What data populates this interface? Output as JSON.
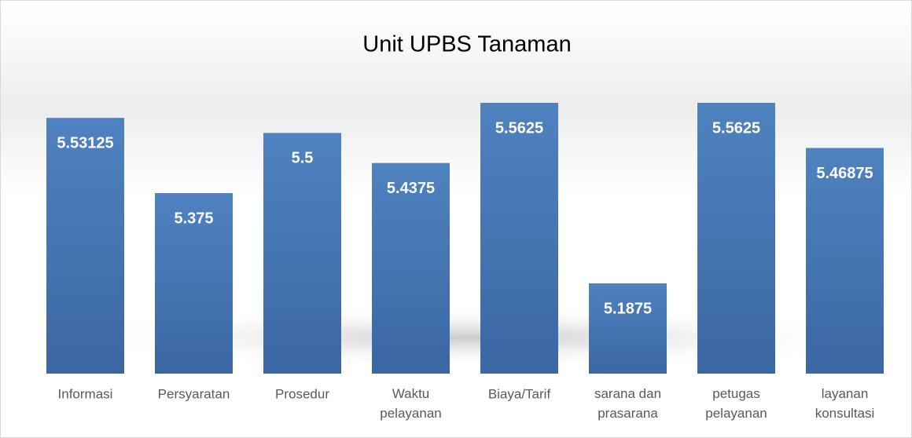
{
  "chart_data": {
    "type": "bar",
    "title": "Unit UPBS Tanaman",
    "categories": [
      "Informasi",
      "Persyaratan",
      "Prosedur",
      "Waktu pelayanan",
      "Biaya/Tarif",
      "sarana dan prasarana",
      "petugas pelayanan",
      "layanan konsultasi"
    ],
    "values": [
      5.53125,
      5.375,
      5.5,
      5.4375,
      5.5625,
      5.1875,
      5.5625,
      5.46875
    ],
    "color": "#4a78b5",
    "ylim": [
      5.0,
      5.6
    ]
  }
}
